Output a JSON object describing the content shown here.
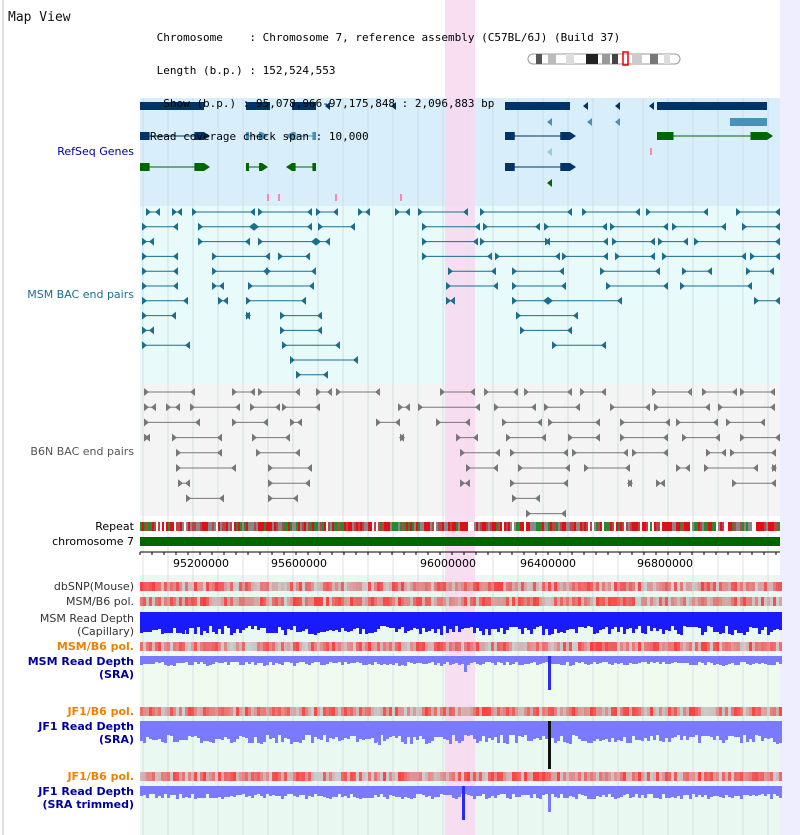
{
  "window_title": "Map View",
  "info": {
    "chromosome_label": "Chromosome",
    "chromosome_value": "Chromosome 7, reference assembly (C57BL/6J) (Build 37)",
    "length_label": "Length (b.p.)",
    "length_value": "152,524,553",
    "show_label": "Show (b.p.)",
    "show_value": "95,078,966-97,175,848 : 2,096,883 bp",
    "coverage_label": "Read coverage check span",
    "coverage_value": "10,000"
  },
  "tracks": {
    "refseq": "RefSeq Genes",
    "msm_bac": "MSM BAC end pairs",
    "b6n_bac": "B6N BAC end pairs",
    "repeat": "Repeat",
    "chromosome": "chromosome 7",
    "dbsnp": "dbSNP(Mouse)",
    "msm_b6_pol": "MSM/B6 pol.",
    "msm_depth_cap_1": "MSM Read Depth",
    "msm_depth_cap_2": "(Capillary)",
    "msm_b6_pol_2": "MSM/B6 pol.",
    "msm_depth_sra_1": "MSM Read Depth",
    "msm_depth_sra_2": "(SRA)",
    "jf1_b6_pol": "JF1/B6 pol.",
    "jf1_depth_sra_1": "JF1 Read Depth",
    "jf1_depth_sra_2": "(SRA)",
    "jf1_b6_pol_2": "JF1/B6 pol.",
    "jf1_depth_trim_1": "JF1 Read Depth",
    "jf1_depth_trim_2": "(SRA trimmed)"
  },
  "axis_ticks": [
    "95200000",
    "95600000",
    "96000000",
    "96400000",
    "96800000"
  ],
  "colors": {
    "refseq_bg": "#d8eefa",
    "bac_bg": "#e8fafa",
    "b6n_bg": "#f4f4f4",
    "highlight": "#f8d8f0",
    "gene_dark": "#003366",
    "gene_mid": "#4a90b8",
    "gene_green": "#006600",
    "msm_line": "#1a6e8e",
    "b6n_line": "#777777",
    "chromosome_bar": "#006600",
    "depth_dark": "#1a1aff",
    "depth_light": "#7a7aff",
    "label_blue": "#0000a0",
    "label_orange": "#f08000",
    "label_teal": "#1a6e8e"
  }
}
